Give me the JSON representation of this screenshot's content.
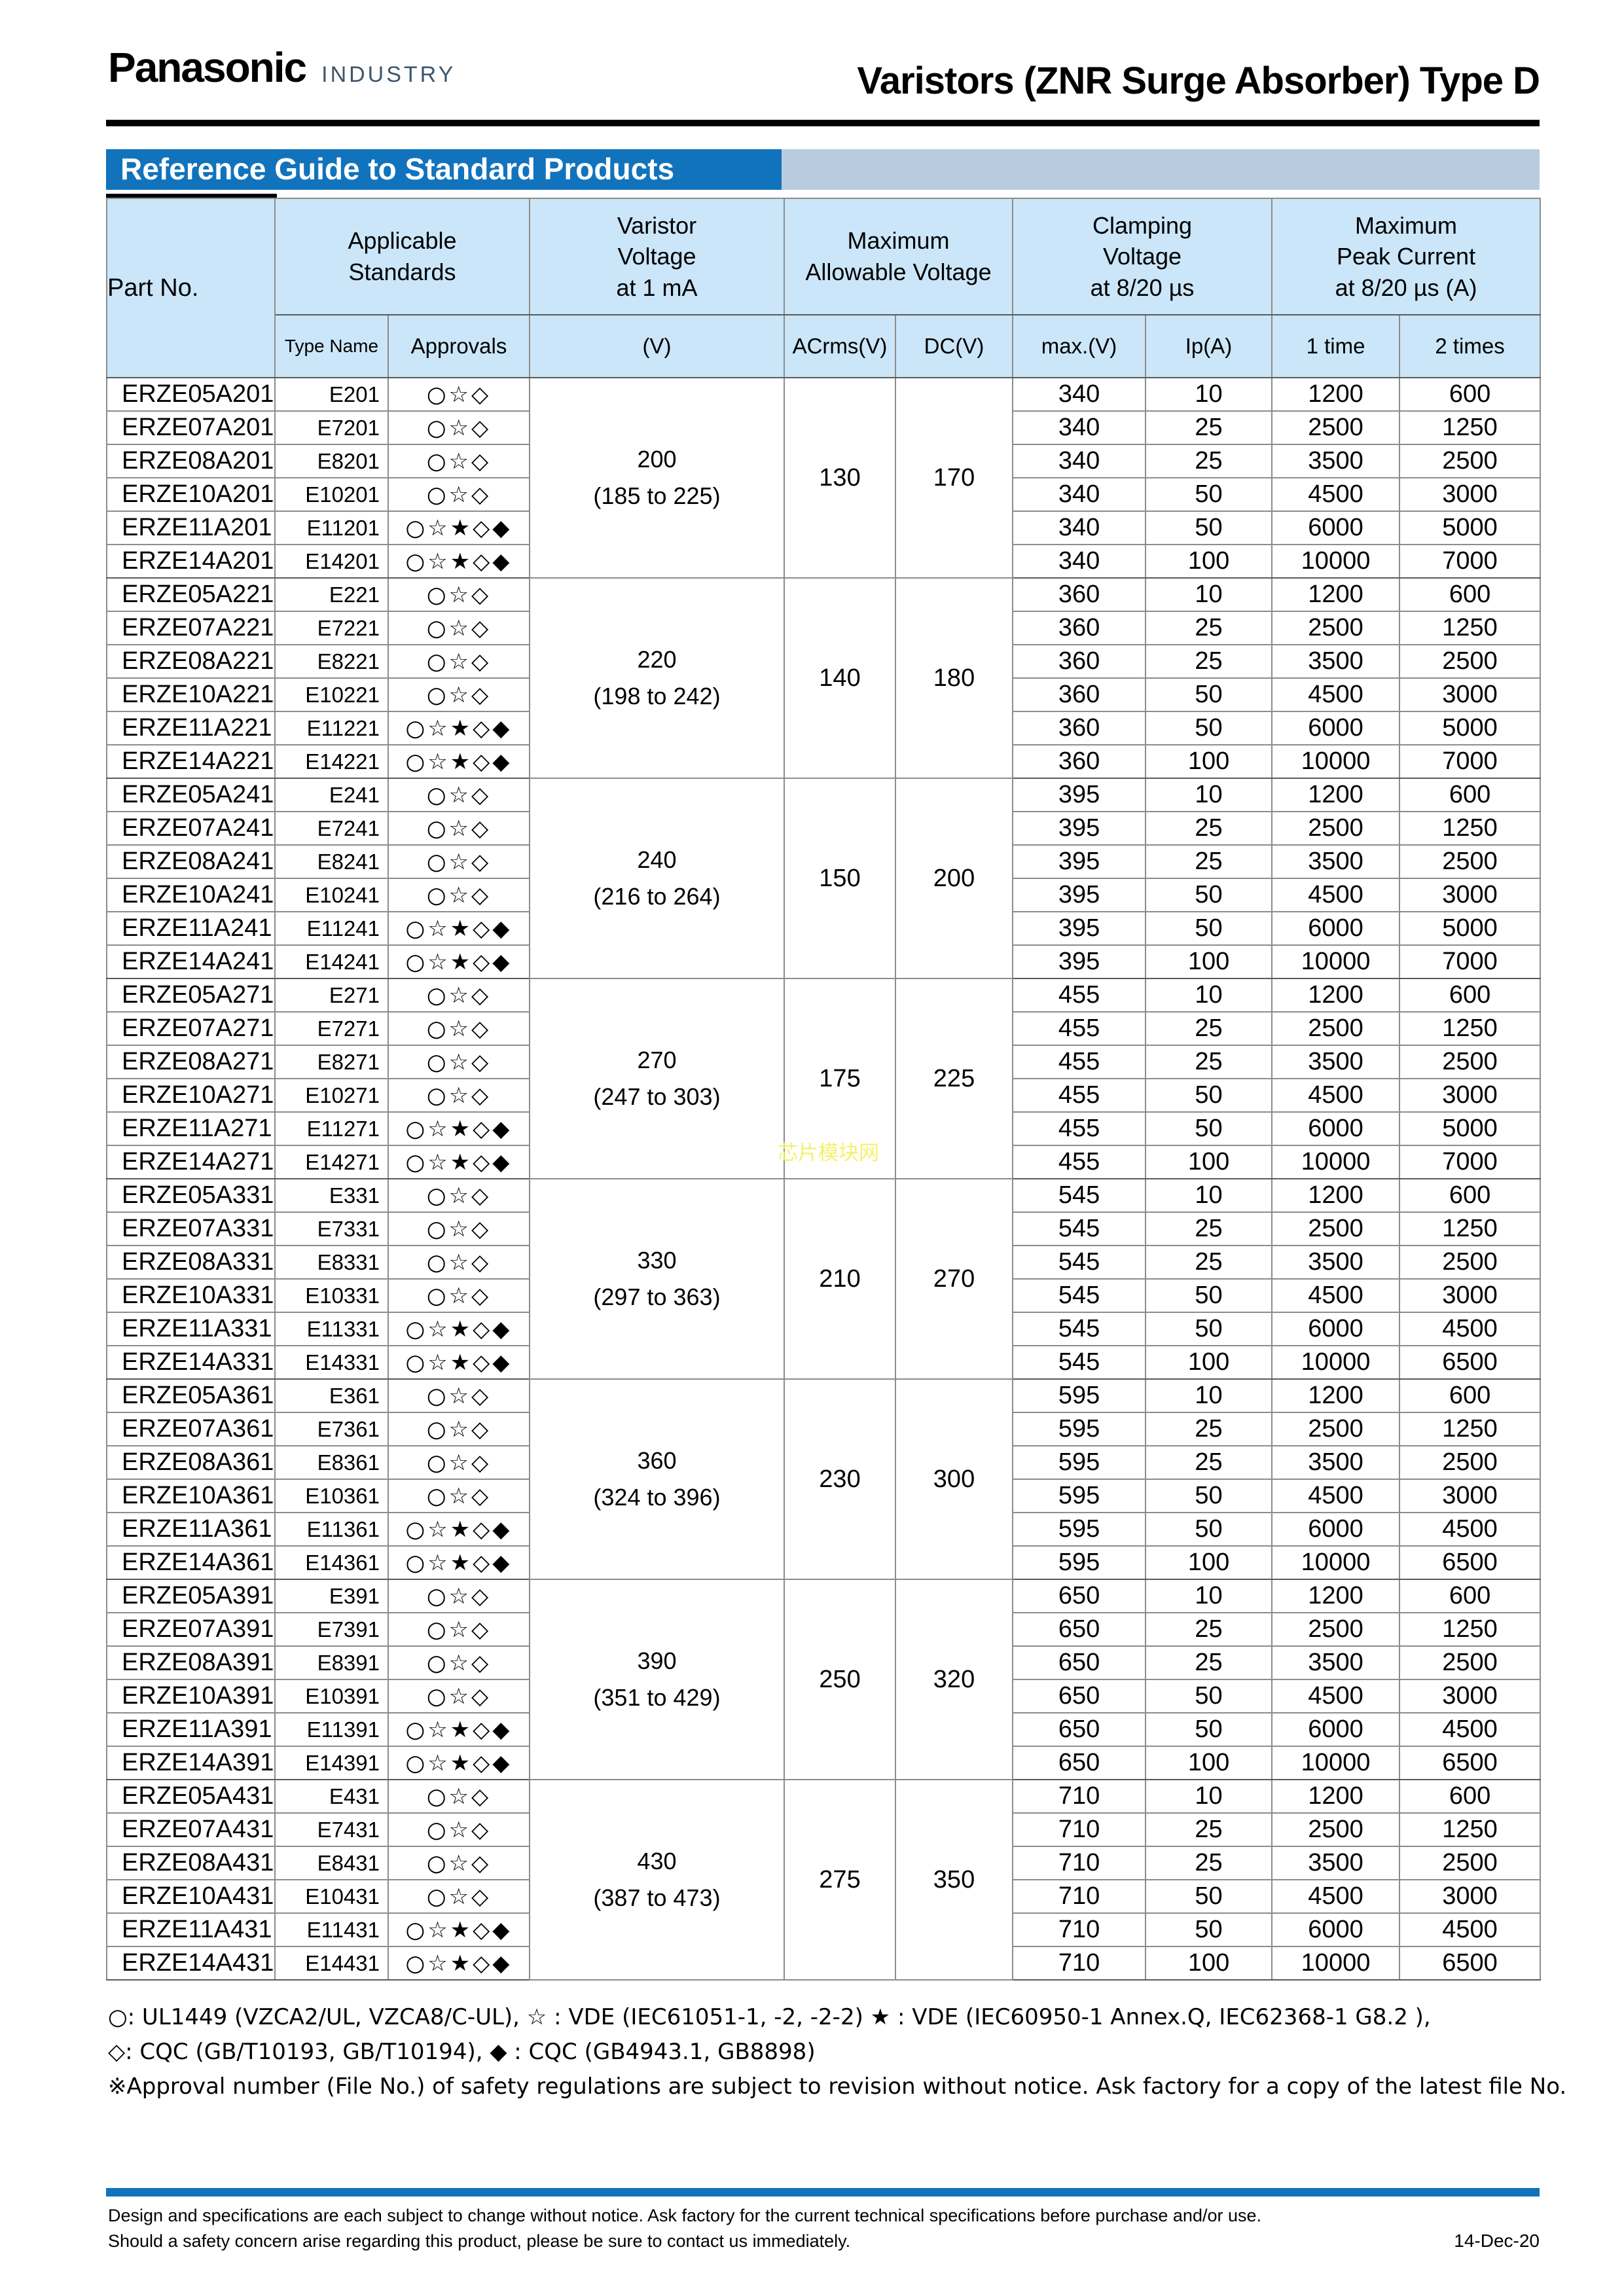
{
  "header": {
    "brand": "Panasonic",
    "brand_sub": "INDUSTRY",
    "doc_title": "Varistors (ZNR Surge Absorber) Type D"
  },
  "section": {
    "title": "Reference Guide to Standard Products"
  },
  "table": {
    "headers": {
      "part_no": "Part No.",
      "applicable_standards": "Applicable\nStandards",
      "varistor_voltage": "Varistor\nVoltage\nat 1 mA",
      "max_allowable_voltage": "Maximum\nAllowable Voltage",
      "clamping_voltage": "Clamping\nVoltage\nat 8/20 µs",
      "max_peak_current": "Maximum\nPeak Current\nat 8/20 µs (A)",
      "type_name": "Type Name",
      "approvals": "Approvals",
      "v": "(V)",
      "acrms": "ACrms(V)",
      "dc": "DC(V)",
      "max_v": "max.(V)",
      "ip": "Ip(A)",
      "one_time": "1 time",
      "two_times": "2 times"
    },
    "groups": [
      {
        "voltage": "200",
        "range": "(185 to 225)",
        "acrms": "130",
        "dc": "170",
        "rows": [
          {
            "part": "ERZE05A201",
            "type": "E201",
            "approvals": "○☆◇",
            "max_v": "340",
            "ip": "10",
            "t1": "1200",
            "t2": "600"
          },
          {
            "part": "ERZE07A201",
            "type": "E7201",
            "approvals": "○☆◇",
            "max_v": "340",
            "ip": "25",
            "t1": "2500",
            "t2": "1250"
          },
          {
            "part": "ERZE08A201",
            "type": "E8201",
            "approvals": "○☆◇",
            "max_v": "340",
            "ip": "25",
            "t1": "3500",
            "t2": "2500"
          },
          {
            "part": "ERZE10A201",
            "type": "E10201",
            "approvals": "○☆◇",
            "max_v": "340",
            "ip": "50",
            "t1": "4500",
            "t2": "3000"
          },
          {
            "part": "ERZE11A201",
            "type": "E11201",
            "approvals": "○☆★◇◆",
            "max_v": "340",
            "ip": "50",
            "t1": "6000",
            "t2": "5000"
          },
          {
            "part": "ERZE14A201",
            "type": "E14201",
            "approvals": "○☆★◇◆",
            "max_v": "340",
            "ip": "100",
            "t1": "10000",
            "t2": "7000"
          }
        ]
      },
      {
        "voltage": "220",
        "range": "(198 to 242)",
        "acrms": "140",
        "dc": "180",
        "rows": [
          {
            "part": "ERZE05A221",
            "type": "E221",
            "approvals": "○☆◇",
            "max_v": "360",
            "ip": "10",
            "t1": "1200",
            "t2": "600"
          },
          {
            "part": "ERZE07A221",
            "type": "E7221",
            "approvals": "○☆◇",
            "max_v": "360",
            "ip": "25",
            "t1": "2500",
            "t2": "1250"
          },
          {
            "part": "ERZE08A221",
            "type": "E8221",
            "approvals": "○☆◇",
            "max_v": "360",
            "ip": "25",
            "t1": "3500",
            "t2": "2500"
          },
          {
            "part": "ERZE10A221",
            "type": "E10221",
            "approvals": "○☆◇",
            "max_v": "360",
            "ip": "50",
            "t1": "4500",
            "t2": "3000"
          },
          {
            "part": "ERZE11A221",
            "type": "E11221",
            "approvals": "○☆★◇◆",
            "max_v": "360",
            "ip": "50",
            "t1": "6000",
            "t2": "5000"
          },
          {
            "part": "ERZE14A221",
            "type": "E14221",
            "approvals": "○☆★◇◆",
            "max_v": "360",
            "ip": "100",
            "t1": "10000",
            "t2": "7000"
          }
        ]
      },
      {
        "voltage": "240",
        "range": "(216 to 264)",
        "acrms": "150",
        "dc": "200",
        "rows": [
          {
            "part": "ERZE05A241",
            "type": "E241",
            "approvals": "○☆◇",
            "max_v": "395",
            "ip": "10",
            "t1": "1200",
            "t2": "600"
          },
          {
            "part": "ERZE07A241",
            "type": "E7241",
            "approvals": "○☆◇",
            "max_v": "395",
            "ip": "25",
            "t1": "2500",
            "t2": "1250"
          },
          {
            "part": "ERZE08A241",
            "type": "E8241",
            "approvals": "○☆◇",
            "max_v": "395",
            "ip": "25",
            "t1": "3500",
            "t2": "2500"
          },
          {
            "part": "ERZE10A241",
            "type": "E10241",
            "approvals": "○☆◇",
            "max_v": "395",
            "ip": "50",
            "t1": "4500",
            "t2": "3000"
          },
          {
            "part": "ERZE11A241",
            "type": "E11241",
            "approvals": "○☆★◇◆",
            "max_v": "395",
            "ip": "50",
            "t1": "6000",
            "t2": "5000"
          },
          {
            "part": "ERZE14A241",
            "type": "E14241",
            "approvals": "○☆★◇◆",
            "max_v": "395",
            "ip": "100",
            "t1": "10000",
            "t2": "7000"
          }
        ]
      },
      {
        "voltage": "270",
        "range": "(247 to 303)",
        "acrms": "175",
        "dc": "225",
        "rows": [
          {
            "part": "ERZE05A271",
            "type": "E271",
            "approvals": "○☆◇",
            "max_v": "455",
            "ip": "10",
            "t1": "1200",
            "t2": "600"
          },
          {
            "part": "ERZE07A271",
            "type": "E7271",
            "approvals": "○☆◇",
            "max_v": "455",
            "ip": "25",
            "t1": "2500",
            "t2": "1250"
          },
          {
            "part": "ERZE08A271",
            "type": "E8271",
            "approvals": "○☆◇",
            "max_v": "455",
            "ip": "25",
            "t1": "3500",
            "t2": "2500"
          },
          {
            "part": "ERZE10A271",
            "type": "E10271",
            "approvals": "○☆◇",
            "max_v": "455",
            "ip": "50",
            "t1": "4500",
            "t2": "3000"
          },
          {
            "part": "ERZE11A271",
            "type": "E11271",
            "approvals": "○☆★◇◆",
            "max_v": "455",
            "ip": "50",
            "t1": "6000",
            "t2": "5000"
          },
          {
            "part": "ERZE14A271",
            "type": "E14271",
            "approvals": "○☆★◇◆",
            "max_v": "455",
            "ip": "100",
            "t1": "10000",
            "t2": "7000"
          }
        ]
      },
      {
        "voltage": "330",
        "range": "(297 to 363)",
        "acrms": "210",
        "dc": "270",
        "rows": [
          {
            "part": "ERZE05A331",
            "type": "E331",
            "approvals": "○☆◇",
            "max_v": "545",
            "ip": "10",
            "t1": "1200",
            "t2": "600"
          },
          {
            "part": "ERZE07A331",
            "type": "E7331",
            "approvals": "○☆◇",
            "max_v": "545",
            "ip": "25",
            "t1": "2500",
            "t2": "1250"
          },
          {
            "part": "ERZE08A331",
            "type": "E8331",
            "approvals": "○☆◇",
            "max_v": "545",
            "ip": "25",
            "t1": "3500",
            "t2": "2500"
          },
          {
            "part": "ERZE10A331",
            "type": "E10331",
            "approvals": "○☆◇",
            "max_v": "545",
            "ip": "50",
            "t1": "4500",
            "t2": "3000"
          },
          {
            "part": "ERZE11A331",
            "type": "E11331",
            "approvals": "○☆★◇◆",
            "max_v": "545",
            "ip": "50",
            "t1": "6000",
            "t2": "4500"
          },
          {
            "part": "ERZE14A331",
            "type": "E14331",
            "approvals": "○☆★◇◆",
            "max_v": "545",
            "ip": "100",
            "t1": "10000",
            "t2": "6500"
          }
        ]
      },
      {
        "voltage": "360",
        "range": "(324 to 396)",
        "acrms": "230",
        "dc": "300",
        "rows": [
          {
            "part": "ERZE05A361",
            "type": "E361",
            "approvals": "○☆◇",
            "max_v": "595",
            "ip": "10",
            "t1": "1200",
            "t2": "600"
          },
          {
            "part": "ERZE07A361",
            "type": "E7361",
            "approvals": "○☆◇",
            "max_v": "595",
            "ip": "25",
            "t1": "2500",
            "t2": "1250"
          },
          {
            "part": "ERZE08A361",
            "type": "E8361",
            "approvals": "○☆◇",
            "max_v": "595",
            "ip": "25",
            "t1": "3500",
            "t2": "2500"
          },
          {
            "part": "ERZE10A361",
            "type": "E10361",
            "approvals": "○☆◇",
            "max_v": "595",
            "ip": "50",
            "t1": "4500",
            "t2": "3000"
          },
          {
            "part": "ERZE11A361",
            "type": "E11361",
            "approvals": "○☆★◇◆",
            "max_v": "595",
            "ip": "50",
            "t1": "6000",
            "t2": "4500"
          },
          {
            "part": "ERZE14A361",
            "type": "E14361",
            "approvals": "○☆★◇◆",
            "max_v": "595",
            "ip": "100",
            "t1": "10000",
            "t2": "6500"
          }
        ]
      },
      {
        "voltage": "390",
        "range": "(351 to 429)",
        "acrms": "250",
        "dc": "320",
        "rows": [
          {
            "part": "ERZE05A391",
            "type": "E391",
            "approvals": "○☆◇",
            "max_v": "650",
            "ip": "10",
            "t1": "1200",
            "t2": "600"
          },
          {
            "part": "ERZE07A391",
            "type": "E7391",
            "approvals": "○☆◇",
            "max_v": "650",
            "ip": "25",
            "t1": "2500",
            "t2": "1250"
          },
          {
            "part": "ERZE08A391",
            "type": "E8391",
            "approvals": "○☆◇",
            "max_v": "650",
            "ip": "25",
            "t1": "3500",
            "t2": "2500"
          },
          {
            "part": "ERZE10A391",
            "type": "E10391",
            "approvals": "○☆◇",
            "max_v": "650",
            "ip": "50",
            "t1": "4500",
            "t2": "3000"
          },
          {
            "part": "ERZE11A391",
            "type": "E11391",
            "approvals": "○☆★◇◆",
            "max_v": "650",
            "ip": "50",
            "t1": "6000",
            "t2": "4500"
          },
          {
            "part": "ERZE14A391",
            "type": "E14391",
            "approvals": "○☆★◇◆",
            "max_v": "650",
            "ip": "100",
            "t1": "10000",
            "t2": "6500"
          }
        ]
      },
      {
        "voltage": "430",
        "range": "(387 to 473)",
        "acrms": "275",
        "dc": "350",
        "rows": [
          {
            "part": "ERZE05A431",
            "type": "E431",
            "approvals": "○☆◇",
            "max_v": "710",
            "ip": "10",
            "t1": "1200",
            "t2": "600"
          },
          {
            "part": "ERZE07A431",
            "type": "E7431",
            "approvals": "○☆◇",
            "max_v": "710",
            "ip": "25",
            "t1": "2500",
            "t2": "1250"
          },
          {
            "part": "ERZE08A431",
            "type": "E8431",
            "approvals": "○☆◇",
            "max_v": "710",
            "ip": "25",
            "t1": "3500",
            "t2": "2500"
          },
          {
            "part": "ERZE10A431",
            "type": "E10431",
            "approvals": "○☆◇",
            "max_v": "710",
            "ip": "50",
            "t1": "4500",
            "t2": "3000"
          },
          {
            "part": "ERZE11A431",
            "type": "E11431",
            "approvals": "○☆★◇◆",
            "max_v": "710",
            "ip": "50",
            "t1": "6000",
            "t2": "4500"
          },
          {
            "part": "ERZE14A431",
            "type": "E14431",
            "approvals": "○☆★◇◆",
            "max_v": "710",
            "ip": "100",
            "t1": "10000",
            "t2": "6500"
          }
        ]
      }
    ]
  },
  "footnotes": {
    "line1": "○: UL1449 (VZCA2/UL, VZCA8/C-UL), ☆ : VDE (IEC61051-1, -2, -2-2) ★ : VDE (IEC60950-1 Annex.Q, IEC62368-1 G8.2 ),",
    "line2": "◇: CQC (GB/T10193, GB/T10194), ◆ : CQC (GB4943.1, GB8898)",
    "line3": "※Approval number (File No.) of safety regulations are subject to revision without notice. Ask factory for a copy of the latest file No."
  },
  "watermark": "芯片模块网",
  "footer": {
    "line1": "Design and specifications are each subject to change without notice. Ask factory for the current technical specifications before purchase and/or use.",
    "line2": "Should a safety concern arise regarding this product, please be sure to contact us immediately.",
    "date": "14-Dec-20"
  }
}
